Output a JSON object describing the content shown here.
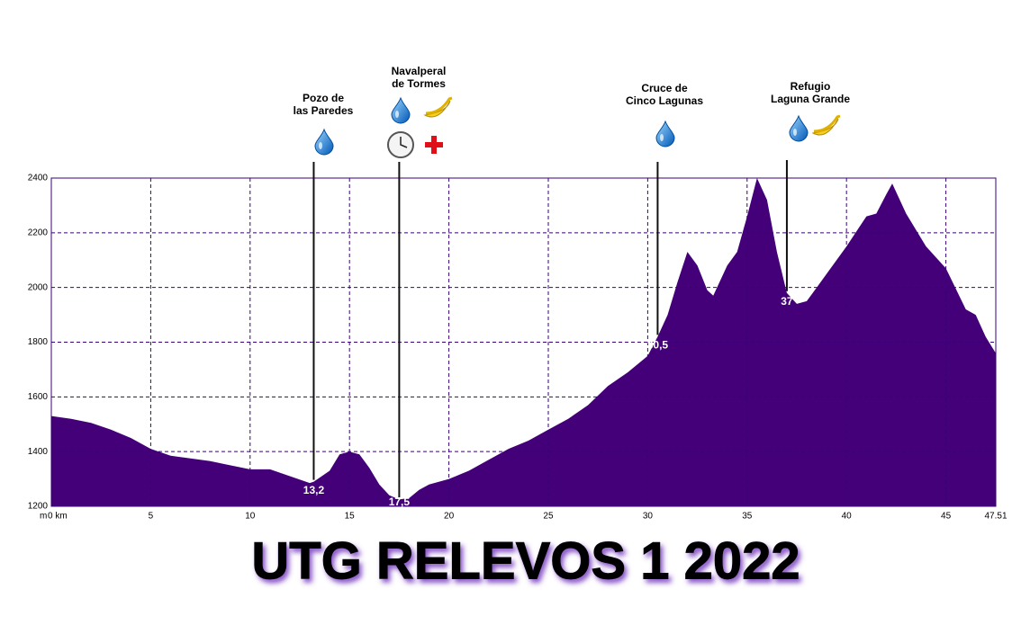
{
  "chart_data": {
    "type": "area",
    "title": "UTG RELEVOS 1 2022",
    "y_unit": "m",
    "color": "#430078",
    "x": [
      0,
      1,
      2,
      3,
      4,
      5,
      6,
      7,
      8,
      9,
      10,
      11,
      12,
      13,
      13.2,
      14,
      14.5,
      15,
      15.5,
      16,
      16.5,
      17,
      17.5,
      18,
      18.5,
      19,
      20,
      21,
      22,
      23,
      24,
      25,
      26,
      27,
      28,
      29,
      30,
      30.5,
      31,
      31.5,
      32,
      32.5,
      33,
      33.3,
      34,
      34.5,
      35,
      35.5,
      36,
      36.5,
      37,
      37.5,
      38,
      38.5,
      39,
      40,
      41,
      41.5,
      42,
      42.3,
      43,
      44,
      45,
      46,
      46.5,
      47,
      47.51
    ],
    "values": [
      1530,
      1520,
      1505,
      1480,
      1450,
      1410,
      1385,
      1375,
      1365,
      1350,
      1335,
      1335,
      1310,
      1285,
      1290,
      1330,
      1390,
      1400,
      1390,
      1340,
      1280,
      1240,
      1225,
      1230,
      1260,
      1280,
      1300,
      1330,
      1370,
      1410,
      1440,
      1480,
      1520,
      1570,
      1640,
      1690,
      1750,
      1820,
      1900,
      2020,
      2130,
      2080,
      1990,
      1970,
      2080,
      2130,
      2260,
      2400,
      2320,
      2130,
      1980,
      1940,
      1950,
      2000,
      2050,
      2150,
      2260,
      2270,
      2340,
      2380,
      2270,
      2150,
      2070,
      1920,
      1900,
      1820,
      1760
    ],
    "xlim": [
      0,
      47.51
    ],
    "ylim": [
      1200,
      2400
    ],
    "xticks": [
      {
        "value": 0,
        "label": "0 km"
      },
      5,
      10,
      15,
      20,
      25,
      30,
      35,
      40,
      45,
      47.51
    ],
    "yticks": [
      1200,
      1400,
      1600,
      1800,
      2000,
      2200,
      2400
    ],
    "grid": true,
    "annotations": [
      {
        "name": [
          "Pozo de",
          "las Paredes"
        ],
        "km": 13.2,
        "label": "13,2"
      },
      {
        "name": [
          "Navalperal",
          "de Tormes"
        ],
        "km": 17.5,
        "label": "17,5"
      },
      {
        "name": [
          "Cruce de",
          "Cinco Lagunas"
        ],
        "km": 30.5,
        "label": "30,5"
      },
      {
        "name": [
          "Refugio",
          "Laguna Grande"
        ],
        "km": 37,
        "label": "37"
      }
    ]
  }
}
